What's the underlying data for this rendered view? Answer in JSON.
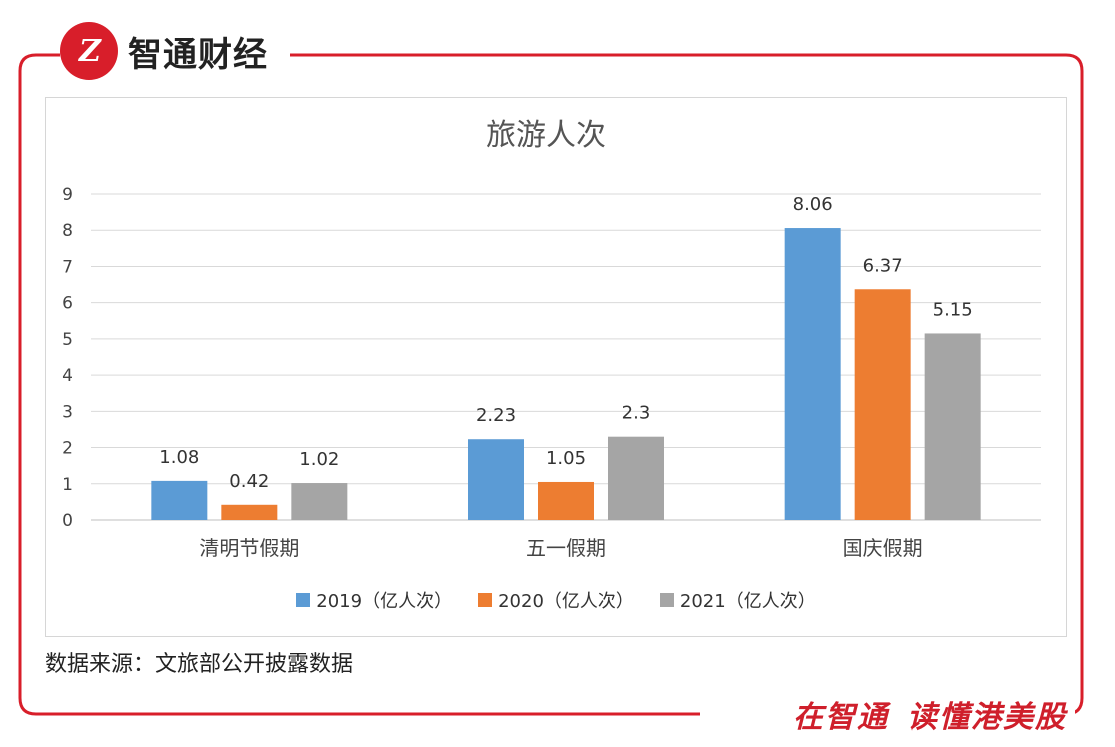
{
  "brand": {
    "logo_text": "Z",
    "name": "智通财经"
  },
  "chart_data": {
    "type": "bar",
    "title": "旅游人次",
    "categories": [
      "清明节假期",
      "五一假期",
      "国庆假期"
    ],
    "series": [
      {
        "name": "2019（亿人次）",
        "color": "#5b9bd5",
        "values": [
          1.08,
          2.23,
          8.06
        ]
      },
      {
        "name": "2020（亿人次）",
        "color": "#ed7d31",
        "values": [
          0.42,
          1.05,
          6.37
        ]
      },
      {
        "name": "2021（亿人次）",
        "color": "#a5a5a5",
        "values": [
          1.02,
          2.3,
          5.15
        ]
      }
    ],
    "yticks": [
      "0",
      "1",
      "2",
      "3",
      "4",
      "5",
      "6",
      "7",
      "8",
      "9"
    ],
    "ylim": [
      0,
      9
    ],
    "xlabel": "",
    "ylabel": "",
    "grid": true,
    "legend_position": "bottom"
  },
  "source": "数据来源：文旅部公开披露数据",
  "slogan": {
    "part1": "在智通",
    "part2": "读懂港美股"
  },
  "frame_color": "#d81e2a"
}
